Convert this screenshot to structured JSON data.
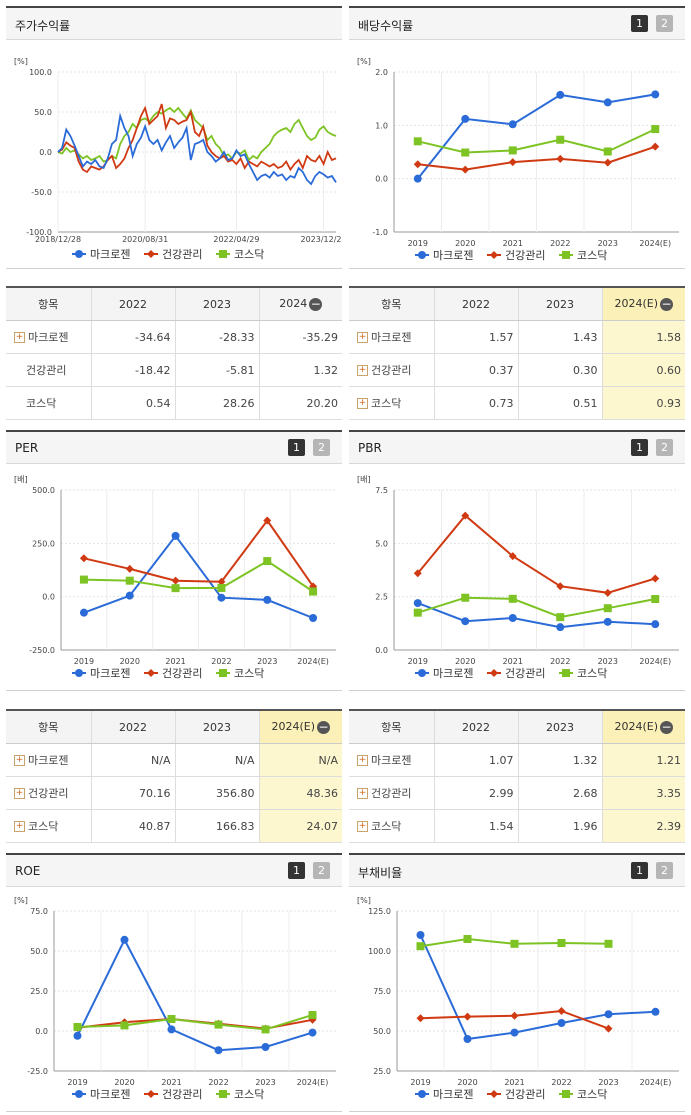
{
  "colors": {
    "series1": "#2a6bd8",
    "series2": "#d03a12",
    "series3": "#7cc323"
  },
  "series_names": [
    "마크로젠",
    "건강관리",
    "코스닥"
  ],
  "pager": {
    "p1": "1",
    "p2": "2"
  },
  "panels": {
    "stock": {
      "title": "주가수익률",
      "unit": "[%]",
      "yticks": [
        "100.0",
        "50.0",
        "0.0",
        "-50.0",
        "-100.0"
      ],
      "xticks": [
        "2018/12/28",
        "2020/08/31",
        "2022/04/29",
        "2023/12/28"
      ]
    },
    "dividend": {
      "title": "배당수익률",
      "unit": "[%]",
      "yticks": [
        "2.0",
        "1.0",
        "0.0",
        "-1.0"
      ],
      "xticks": [
        "2019",
        "2020",
        "2021",
        "2022",
        "2023",
        "2024(E)"
      ]
    },
    "per": {
      "title": "PER",
      "unit": "[배]",
      "yticks": [
        "500.0",
        "250.0",
        "0.0",
        "-250.0"
      ],
      "xticks": [
        "2019",
        "2020",
        "2021",
        "2022",
        "2023",
        "2024(E)"
      ]
    },
    "pbr": {
      "title": "PBR",
      "unit": "[배]",
      "yticks": [
        "7.5",
        "5.0",
        "2.5",
        "0.0"
      ],
      "xticks": [
        "2019",
        "2020",
        "2021",
        "2022",
        "2023",
        "2024(E)"
      ]
    },
    "roe": {
      "title": "ROE",
      "unit": "[%]",
      "yticks": [
        "75.0",
        "50.0",
        "25.0",
        "0.0",
        "-25.0"
      ],
      "xticks": [
        "2019",
        "2020",
        "2021",
        "2022",
        "2023",
        "2024(E)"
      ]
    },
    "debt": {
      "title": "부채비율",
      "unit": "[%]",
      "yticks": [
        "125.0",
        "100.0",
        "75.0",
        "50.0",
        "25.0"
      ],
      "xticks": [
        "2019",
        "2020",
        "2021",
        "2022",
        "2023",
        "2024(E)"
      ]
    }
  },
  "tables": {
    "stock": {
      "headers": [
        "항목",
        "2022",
        "2023",
        "2024"
      ],
      "rows": [
        {
          "name": "마크로젠",
          "plus": true,
          "v": [
            "-34.64",
            "-28.33",
            "-35.29"
          ]
        },
        {
          "name": "건강관리",
          "plus": false,
          "v": [
            "-18.42",
            "-5.81",
            "1.32"
          ]
        },
        {
          "name": "코스닥",
          "plus": false,
          "v": [
            "0.54",
            "28.26",
            "20.20"
          ]
        }
      ]
    },
    "dividend": {
      "headers": [
        "항목",
        "2022",
        "2023",
        "2024(E)"
      ],
      "rows": [
        {
          "name": "마크로젠",
          "plus": true,
          "v": [
            "1.57",
            "1.43",
            "1.58"
          ]
        },
        {
          "name": "건강관리",
          "plus": true,
          "v": [
            "0.37",
            "0.30",
            "0.60"
          ]
        },
        {
          "name": "코스닥",
          "plus": true,
          "v": [
            "0.73",
            "0.51",
            "0.93"
          ]
        }
      ]
    },
    "per": {
      "headers": [
        "항목",
        "2022",
        "2023",
        "2024(E)"
      ],
      "rows": [
        {
          "name": "마크로젠",
          "plus": true,
          "v": [
            "N/A",
            "N/A",
            "N/A"
          ]
        },
        {
          "name": "건강관리",
          "plus": true,
          "v": [
            "70.16",
            "356.80",
            "48.36"
          ]
        },
        {
          "name": "코스닥",
          "plus": true,
          "v": [
            "40.87",
            "166.83",
            "24.07"
          ]
        }
      ]
    },
    "pbr": {
      "headers": [
        "항목",
        "2022",
        "2023",
        "2024(E)"
      ],
      "rows": [
        {
          "name": "마크로젠",
          "plus": true,
          "v": [
            "1.07",
            "1.32",
            "1.21"
          ]
        },
        {
          "name": "건강관리",
          "plus": true,
          "v": [
            "2.99",
            "2.68",
            "3.35"
          ]
        },
        {
          "name": "코스닥",
          "plus": true,
          "v": [
            "1.54",
            "1.96",
            "2.39"
          ]
        }
      ]
    }
  },
  "chart_data": [
    {
      "id": "stock",
      "type": "line",
      "title": "주가수익률",
      "ylabel": "[%]",
      "ylim": [
        -100,
        100
      ],
      "x_ticks": [
        "2018/12/28",
        "2020/08/31",
        "2022/04/29",
        "2023/12/28"
      ],
      "series": [
        {
          "name": "마크로젠",
          "values": [
            0,
            5,
            28,
            20,
            8,
            -5,
            -18,
            -12,
            -15,
            -10,
            -18,
            -20,
            -8,
            10,
            15,
            45,
            30,
            20,
            -5,
            10,
            18,
            32,
            15,
            10,
            15,
            2,
            12,
            20,
            5,
            12,
            18,
            30,
            -10,
            10,
            12,
            15,
            0,
            -5,
            -12,
            -8,
            0,
            -10,
            -8,
            2,
            -5,
            -3,
            -15,
            -25,
            -35,
            -30,
            -28,
            -32,
            -25,
            -30,
            -28,
            -35,
            -30,
            -32,
            -20,
            -25,
            -35,
            -40,
            -30,
            -25,
            -28,
            -32,
            -30,
            -38
          ]
        },
        {
          "name": "건강관리",
          "values": [
            0,
            3,
            12,
            8,
            5,
            -12,
            -22,
            -25,
            -18,
            -20,
            -22,
            -18,
            -10,
            -5,
            -20,
            -15,
            -8,
            5,
            15,
            30,
            45,
            55,
            35,
            40,
            45,
            60,
            30,
            42,
            40,
            35,
            38,
            40,
            50,
            25,
            20,
            32,
            8,
            0,
            -5,
            -8,
            -5,
            -12,
            -10,
            -15,
            -8,
            -20,
            -12,
            -15,
            -18,
            -12,
            -15,
            -18,
            -15,
            -20,
            -18,
            -12,
            -22,
            -15,
            -10,
            -20,
            -5,
            -10,
            -12,
            -5,
            -15,
            0,
            -10,
            -8
          ]
        },
        {
          "name": "코스닥",
          "values": [
            0,
            -2,
            5,
            0,
            2,
            -3,
            -8,
            -5,
            -10,
            -8,
            -5,
            -12,
            -10,
            -5,
            -8,
            10,
            20,
            25,
            35,
            30,
            40,
            42,
            38,
            45,
            50,
            48,
            52,
            55,
            50,
            55,
            48,
            42,
            52,
            40,
            35,
            30,
            15,
            20,
            10,
            5,
            -5,
            -3,
            -8,
            0,
            -2,
            2,
            -10,
            -5,
            -8,
            0,
            5,
            10,
            20,
            25,
            28,
            30,
            25,
            35,
            40,
            30,
            20,
            15,
            18,
            28,
            32,
            25,
            22,
            20
          ]
        }
      ]
    },
    {
      "id": "dividend",
      "type": "line",
      "title": "배당수익률",
      "ylabel": "[%]",
      "ylim": [
        -1,
        2
      ],
      "x": [
        "2019",
        "2020",
        "2021",
        "2022",
        "2023",
        "2024(E)"
      ],
      "series": [
        {
          "name": "마크로젠",
          "values": [
            0.0,
            1.12,
            1.02,
            1.57,
            1.43,
            1.58
          ]
        },
        {
          "name": "건강관리",
          "values": [
            0.27,
            0.17,
            0.31,
            0.37,
            0.3,
            0.6
          ]
        },
        {
          "name": "코스닥",
          "values": [
            0.7,
            0.49,
            0.53,
            0.73,
            0.51,
            0.93
          ]
        }
      ]
    },
    {
      "id": "per",
      "type": "line",
      "title": "PER",
      "ylabel": "[배]",
      "ylim": [
        -250,
        500
      ],
      "x": [
        "2019",
        "2020",
        "2021",
        "2022",
        "2023",
        "2024(E)"
      ],
      "series": [
        {
          "name": "마크로젠",
          "values": [
            -75,
            5,
            285,
            -5,
            -15,
            -100
          ]
        },
        {
          "name": "건강관리",
          "values": [
            180,
            130,
            75,
            70.16,
            356.8,
            48.36
          ]
        },
        {
          "name": "코스닥",
          "values": [
            80,
            75,
            40,
            40.87,
            166.83,
            24.07
          ]
        }
      ]
    },
    {
      "id": "pbr",
      "type": "line",
      "title": "PBR",
      "ylabel": "[배]",
      "ylim": [
        0,
        7.5
      ],
      "x": [
        "2019",
        "2020",
        "2021",
        "2022",
        "2023",
        "2024(E)"
      ],
      "series": [
        {
          "name": "마크로젠",
          "values": [
            2.2,
            1.35,
            1.5,
            1.07,
            1.32,
            1.21
          ]
        },
        {
          "name": "건강관리",
          "values": [
            3.6,
            6.3,
            4.4,
            2.99,
            2.68,
            3.35
          ]
        },
        {
          "name": "코스닥",
          "values": [
            1.75,
            2.45,
            2.4,
            1.54,
            1.96,
            2.39
          ]
        }
      ]
    },
    {
      "id": "roe",
      "type": "line",
      "title": "ROE",
      "ylabel": "[%]",
      "ylim": [
        -25,
        75
      ],
      "x": [
        "2019",
        "2020",
        "2021",
        "2022",
        "2023",
        "2024(E)"
      ],
      "series": [
        {
          "name": "마크로젠",
          "values": [
            -3,
            57,
            1,
            -12,
            -10,
            -1
          ]
        },
        {
          "name": "건강관리",
          "values": [
            2,
            5.5,
            7.5,
            4.5,
            1.5,
            7
          ]
        },
        {
          "name": "코스닥",
          "values": [
            2.5,
            3.5,
            7.5,
            4,
            1,
            10
          ]
        }
      ]
    },
    {
      "id": "debt",
      "type": "line",
      "title": "부채비율",
      "ylabel": "[%]",
      "ylim": [
        25,
        125
      ],
      "x": [
        "2019",
        "2020",
        "2021",
        "2022",
        "2023",
        "2024(E)"
      ],
      "series": [
        {
          "name": "마크로젠",
          "values": [
            110,
            45,
            49,
            55,
            60.5,
            62
          ]
        },
        {
          "name": "건강관리",
          "values": [
            58,
            59,
            59.5,
            62.5,
            51.5,
            null
          ]
        },
        {
          "name": "코스닥",
          "values": [
            103,
            107.5,
            104.5,
            105,
            104.5,
            null
          ]
        }
      ]
    }
  ]
}
